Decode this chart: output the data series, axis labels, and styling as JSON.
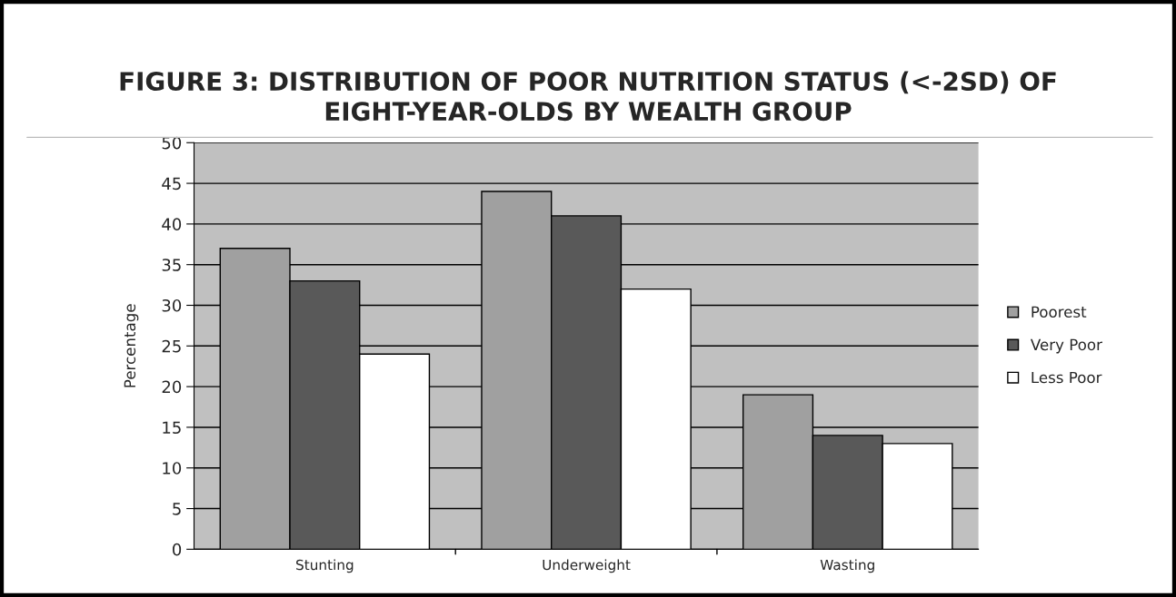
{
  "chart_data": {
    "type": "bar",
    "title": "FIGURE 3: DISTRIBUTION OF POOR NUTRITION STATUS (<-2SD) OF\nEIGHT-YEAR-OLDS BY WEALTH GROUP",
    "ylabel": "Percentage",
    "categories": [
      "Stunting",
      "Underweight",
      "Wasting"
    ],
    "series": [
      {
        "name": "Poorest",
        "color": "#a0a0a0",
        "values": [
          37,
          44,
          19
        ]
      },
      {
        "name": "Very Poor",
        "color": "#595959",
        "values": [
          33,
          41,
          14
        ]
      },
      {
        "name": "Less Poor",
        "color": "#ffffff",
        "values": [
          24,
          32,
          13
        ]
      }
    ],
    "ylim": [
      0,
      50
    ],
    "yticks": [
      0,
      5,
      10,
      15,
      20,
      25,
      30,
      35,
      40,
      45,
      50
    ],
    "grid": "y",
    "legend": "right"
  }
}
